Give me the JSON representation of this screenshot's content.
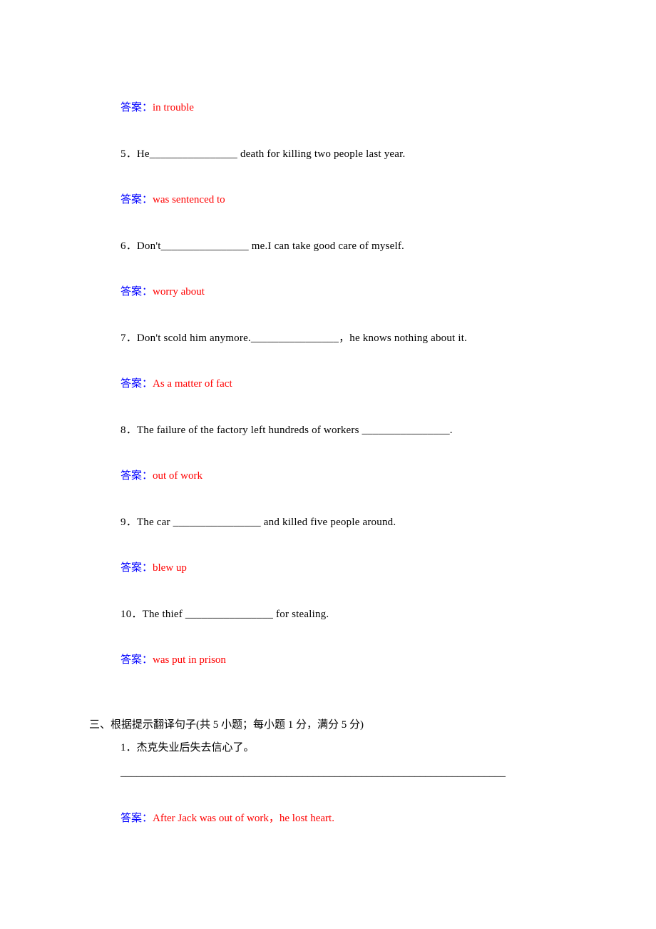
{
  "colors": {
    "text": "#000000",
    "answer_label": "#0000ff",
    "answer_value": "#ff0000",
    "background": "#ffffff"
  },
  "font": {
    "family": "SimSun",
    "size_pt": 11,
    "line_height": 1.5
  },
  "answer_label": "答案：",
  "items": [
    {
      "answer": "in trouble"
    },
    {
      "q": "5．He________________ death for killing two people last year.",
      "answer": "was sentenced to"
    },
    {
      "q": "6．Don't________________ me.I can take good care of myself.",
      "answer": "worry about"
    },
    {
      "q": "7．Don't scold him anymore.________________，he knows nothing about it.",
      "answer": "As a matter of fact"
    },
    {
      "q": "8．The failure of the factory left hundreds of workers ________________.",
      "answer": "out of work"
    },
    {
      "q": "9．The car ________________ and killed five people around.",
      "answer": "blew up"
    },
    {
      "q": "10．The thief ________________ for stealing.",
      "answer": "was put in prison"
    }
  ],
  "section3": {
    "heading": "三、根据提示翻译句子(共 5 小题；每小题 1 分，满分 5 分)",
    "items": [
      {
        "q": "1．杰克失业后失去信心了。",
        "blank": "________________________________________________________________________",
        "answer": "After Jack was out of work，he lost heart."
      }
    ]
  }
}
